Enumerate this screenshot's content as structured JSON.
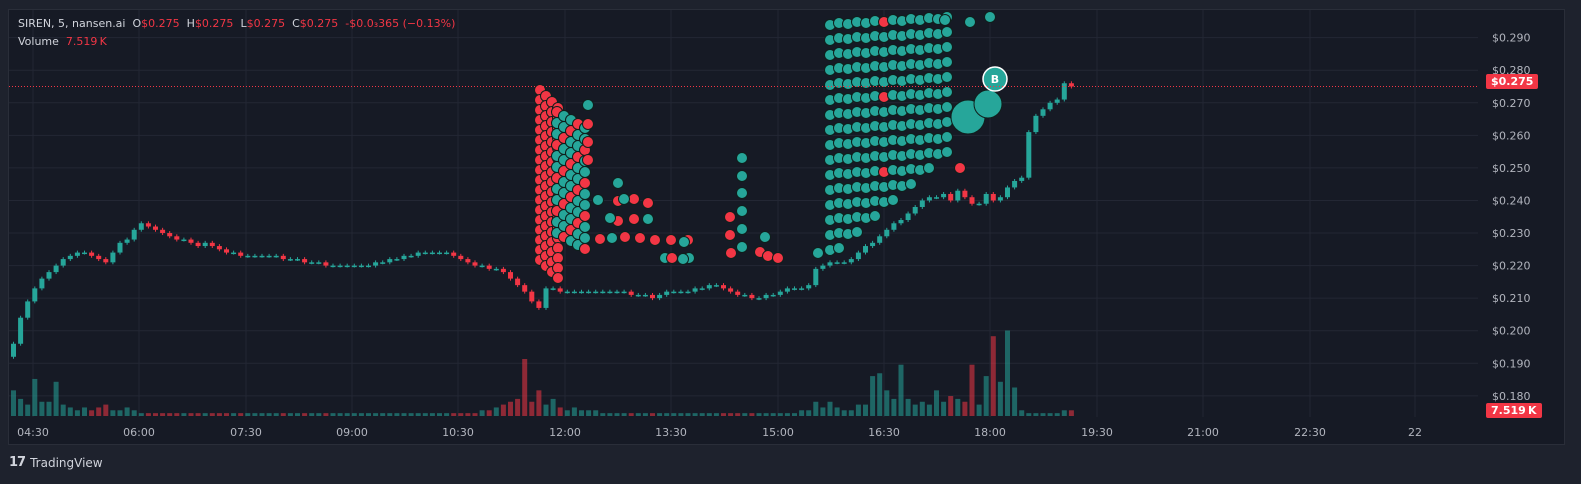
{
  "legend": {
    "symbol": "SIREN, 5, nansen.ai",
    "o_label": "O",
    "o_value": "$0.275",
    "h_label": "H",
    "h_value": "$0.275",
    "l_label": "L",
    "l_value": "$0.275",
    "c_label": "C",
    "c_value": "$0.275",
    "change": "-$0.0₃365 (−0.13%)",
    "volume_label": "Volume",
    "volume_value": "7.519 K"
  },
  "price_tag": "$0.275",
  "volume_tag": "7.519 K",
  "brand": {
    "logo": "17",
    "name": "TradingView"
  },
  "colors": {
    "up": "#26a69a",
    "down": "#f23645",
    "background": "#161a25",
    "grid": "#232734",
    "axis_text": "#b2b5be"
  },
  "chart_data": {
    "type": "candlestick",
    "symbol": "SIREN",
    "interval": "5",
    "source": "nansen.ai",
    "grid": true,
    "y_axis": {
      "position": "right",
      "ylim": [
        0.1735,
        0.2985
      ],
      "ticks": [
        "$0.290",
        "$0.280",
        "$0.270",
        "$0.260",
        "$0.250",
        "$0.240",
        "$0.230",
        "$0.220",
        "$0.210",
        "$0.200",
        "$0.190",
        "$0.180"
      ]
    },
    "x_axis": {
      "ticks": [
        "04:30",
        "06:00",
        "07:30",
        "09:00",
        "10:30",
        "12:00",
        "13:30",
        "15:00",
        "16:30",
        "18:00",
        "19:30",
        "21:00",
        "22:30",
        "22"
      ]
    },
    "last_price": 0.275,
    "volume_last": "7.519K",
    "price_path": [
      [
        0,
        0.196
      ],
      [
        1,
        0.204
      ],
      [
        2,
        0.209
      ],
      [
        3,
        0.213
      ],
      [
        4,
        0.216
      ],
      [
        5,
        0.218
      ],
      [
        6,
        0.22
      ],
      [
        7,
        0.222
      ],
      [
        8,
        0.223
      ],
      [
        9,
        0.224
      ],
      [
        10,
        0.224
      ],
      [
        11,
        0.223
      ],
      [
        12,
        0.222
      ],
      [
        13,
        0.221
      ],
      [
        14,
        0.224
      ],
      [
        15,
        0.227
      ],
      [
        16,
        0.228
      ],
      [
        17,
        0.231
      ],
      [
        18,
        0.233
      ],
      [
        19,
        0.232
      ],
      [
        20,
        0.231
      ],
      [
        21,
        0.23
      ],
      [
        22,
        0.229
      ],
      [
        23,
        0.228
      ],
      [
        24,
        0.228
      ],
      [
        25,
        0.227
      ],
      [
        26,
        0.226
      ],
      [
        27,
        0.227
      ],
      [
        28,
        0.226
      ],
      [
        29,
        0.225
      ],
      [
        30,
        0.224
      ],
      [
        31,
        0.224
      ],
      [
        32,
        0.223
      ],
      [
        33,
        0.223
      ],
      [
        34,
        0.223
      ],
      [
        35,
        0.223
      ],
      [
        36,
        0.223
      ],
      [
        37,
        0.223
      ],
      [
        38,
        0.222
      ],
      [
        39,
        0.222
      ],
      [
        40,
        0.222
      ],
      [
        41,
        0.221
      ],
      [
        42,
        0.221
      ],
      [
        43,
        0.221
      ],
      [
        44,
        0.22
      ],
      [
        45,
        0.22
      ],
      [
        46,
        0.22
      ],
      [
        47,
        0.22
      ],
      [
        48,
        0.22
      ],
      [
        49,
        0.22
      ],
      [
        50,
        0.22
      ],
      [
        51,
        0.221
      ],
      [
        52,
        0.221
      ],
      [
        53,
        0.222
      ],
      [
        54,
        0.222
      ],
      [
        55,
        0.223
      ],
      [
        56,
        0.223
      ],
      [
        57,
        0.224
      ],
      [
        58,
        0.224
      ],
      [
        59,
        0.224
      ],
      [
        60,
        0.224
      ],
      [
        61,
        0.224
      ],
      [
        62,
        0.223
      ],
      [
        63,
        0.222
      ],
      [
        64,
        0.221
      ],
      [
        65,
        0.22
      ],
      [
        66,
        0.22
      ],
      [
        67,
        0.219
      ],
      [
        68,
        0.219
      ],
      [
        69,
        0.218
      ],
      [
        70,
        0.216
      ],
      [
        71,
        0.214
      ],
      [
        72,
        0.212
      ],
      [
        73,
        0.209
      ],
      [
        74,
        0.207
      ],
      [
        75,
        0.213
      ],
      [
        76,
        0.213
      ],
      [
        77,
        0.212
      ],
      [
        78,
        0.212
      ],
      [
        79,
        0.212
      ],
      [
        80,
        0.212
      ],
      [
        81,
        0.212
      ],
      [
        82,
        0.212
      ],
      [
        83,
        0.212
      ],
      [
        84,
        0.212
      ],
      [
        85,
        0.212
      ],
      [
        86,
        0.212
      ],
      [
        87,
        0.211
      ],
      [
        88,
        0.211
      ],
      [
        89,
        0.211
      ],
      [
        90,
        0.21
      ],
      [
        91,
        0.211
      ],
      [
        92,
        0.212
      ],
      [
        93,
        0.212
      ],
      [
        94,
        0.212
      ],
      [
        95,
        0.212
      ],
      [
        96,
        0.213
      ],
      [
        97,
        0.213
      ],
      [
        98,
        0.214
      ],
      [
        99,
        0.214
      ],
      [
        100,
        0.213
      ],
      [
        101,
        0.212
      ],
      [
        102,
        0.211
      ],
      [
        103,
        0.211
      ],
      [
        104,
        0.21
      ],
      [
        105,
        0.21
      ],
      [
        106,
        0.211
      ],
      [
        107,
        0.211
      ],
      [
        108,
        0.212
      ],
      [
        109,
        0.213
      ],
      [
        110,
        0.213
      ],
      [
        111,
        0.213
      ],
      [
        112,
        0.214
      ],
      [
        113,
        0.219
      ],
      [
        114,
        0.22
      ],
      [
        115,
        0.221
      ],
      [
        116,
        0.221
      ],
      [
        117,
        0.221
      ],
      [
        118,
        0.222
      ],
      [
        119,
        0.224
      ],
      [
        120,
        0.226
      ],
      [
        121,
        0.227
      ],
      [
        122,
        0.229
      ],
      [
        123,
        0.231
      ],
      [
        124,
        0.233
      ],
      [
        125,
        0.234
      ],
      [
        126,
        0.236
      ],
      [
        127,
        0.238
      ],
      [
        128,
        0.24
      ],
      [
        129,
        0.241
      ],
      [
        130,
        0.241
      ],
      [
        131,
        0.242
      ],
      [
        132,
        0.24
      ],
      [
        133,
        0.243
      ],
      [
        134,
        0.241
      ],
      [
        135,
        0.239
      ],
      [
        136,
        0.239
      ],
      [
        137,
        0.242
      ],
      [
        138,
        0.24
      ],
      [
        139,
        0.241
      ],
      [
        140,
        0.244
      ],
      [
        141,
        0.246
      ],
      [
        142,
        0.247
      ],
      [
        143,
        0.261
      ],
      [
        144,
        0.266
      ],
      [
        145,
        0.268
      ],
      [
        146,
        0.27
      ],
      [
        147,
        0.271
      ],
      [
        148,
        0.276
      ],
      [
        149,
        0.275
      ]
    ],
    "volume_path": [
      [
        0,
        9
      ],
      [
        1,
        6
      ],
      [
        2,
        4
      ],
      [
        3,
        13
      ],
      [
        4,
        5
      ],
      [
        5,
        5
      ],
      [
        6,
        12
      ],
      [
        7,
        4
      ],
      [
        8,
        3
      ],
      [
        9,
        2
      ],
      [
        10,
        3
      ],
      [
        11,
        2
      ],
      [
        12,
        3
      ],
      [
        13,
        4
      ],
      [
        14,
        2
      ],
      [
        15,
        2
      ],
      [
        16,
        3
      ],
      [
        17,
        2
      ],
      [
        18,
        1
      ],
      [
        19,
        1
      ],
      [
        20,
        1
      ],
      [
        21,
        1
      ],
      [
        22,
        1
      ],
      [
        23,
        1
      ],
      [
        24,
        1
      ],
      [
        25,
        1
      ],
      [
        26,
        1
      ],
      [
        27,
        1
      ],
      [
        28,
        1
      ],
      [
        29,
        1
      ],
      [
        30,
        1
      ],
      [
        31,
        1
      ],
      [
        32,
        1
      ],
      [
        33,
        1
      ],
      [
        34,
        1
      ],
      [
        35,
        1
      ],
      [
        36,
        1
      ],
      [
        37,
        1
      ],
      [
        38,
        1
      ],
      [
        39,
        1
      ],
      [
        40,
        1
      ],
      [
        41,
        1
      ],
      [
        42,
        1
      ],
      [
        43,
        1
      ],
      [
        44,
        1
      ],
      [
        45,
        1
      ],
      [
        46,
        1
      ],
      [
        47,
        1
      ],
      [
        48,
        1
      ],
      [
        49,
        1
      ],
      [
        50,
        1
      ],
      [
        51,
        1
      ],
      [
        52,
        1
      ],
      [
        53,
        1
      ],
      [
        54,
        1
      ],
      [
        55,
        1
      ],
      [
        56,
        1
      ],
      [
        57,
        1
      ],
      [
        58,
        1
      ],
      [
        59,
        1
      ],
      [
        60,
        1
      ],
      [
        61,
        1
      ],
      [
        62,
        1
      ],
      [
        63,
        1
      ],
      [
        64,
        1
      ],
      [
        65,
        1
      ],
      [
        66,
        2
      ],
      [
        67,
        2
      ],
      [
        68,
        3
      ],
      [
        69,
        4
      ],
      [
        70,
        5
      ],
      [
        71,
        6
      ],
      [
        72,
        20
      ],
      [
        73,
        5
      ],
      [
        74,
        9
      ],
      [
        75,
        4
      ],
      [
        76,
        6
      ],
      [
        77,
        3
      ],
      [
        78,
        2
      ],
      [
        79,
        3
      ],
      [
        80,
        2
      ],
      [
        81,
        2
      ],
      [
        82,
        2
      ],
      [
        83,
        1
      ],
      [
        84,
        1
      ],
      [
        85,
        1
      ],
      [
        86,
        1
      ],
      [
        87,
        1
      ],
      [
        88,
        1
      ],
      [
        89,
        1
      ],
      [
        90,
        1
      ],
      [
        91,
        1
      ],
      [
        92,
        1
      ],
      [
        93,
        1
      ],
      [
        94,
        1
      ],
      [
        95,
        1
      ],
      [
        96,
        1
      ],
      [
        97,
        1
      ],
      [
        98,
        1
      ],
      [
        99,
        1
      ],
      [
        100,
        1
      ],
      [
        101,
        1
      ],
      [
        102,
        1
      ],
      [
        103,
        1
      ],
      [
        104,
        1
      ],
      [
        105,
        1
      ],
      [
        106,
        1
      ],
      [
        107,
        1
      ],
      [
        108,
        1
      ],
      [
        109,
        1
      ],
      [
        110,
        1
      ],
      [
        111,
        2
      ],
      [
        112,
        2
      ],
      [
        113,
        5
      ],
      [
        114,
        3
      ],
      [
        115,
        5
      ],
      [
        116,
        3
      ],
      [
        117,
        2
      ],
      [
        118,
        2
      ],
      [
        119,
        4
      ],
      [
        120,
        4
      ],
      [
        121,
        14
      ],
      [
        122,
        15
      ],
      [
        123,
        9
      ],
      [
        124,
        6
      ],
      [
        125,
        18
      ],
      [
        126,
        6
      ],
      [
        127,
        4
      ],
      [
        128,
        5
      ],
      [
        129,
        4
      ],
      [
        130,
        9
      ],
      [
        131,
        5
      ],
      [
        132,
        7
      ],
      [
        133,
        6
      ],
      [
        134,
        5
      ],
      [
        135,
        18
      ],
      [
        136,
        4
      ],
      [
        137,
        14
      ],
      [
        138,
        28
      ],
      [
        139,
        12
      ],
      [
        140,
        30
      ],
      [
        141,
        10
      ],
      [
        142,
        2
      ],
      [
        143,
        1
      ],
      [
        144,
        1
      ],
      [
        145,
        1
      ],
      [
        146,
        1
      ],
      [
        147,
        1
      ],
      [
        148,
        2
      ],
      [
        149,
        2
      ]
    ],
    "trade_markers": {
      "buy_color": "#26a69a",
      "sell_color": "#f23645",
      "label": "B"
    }
  }
}
